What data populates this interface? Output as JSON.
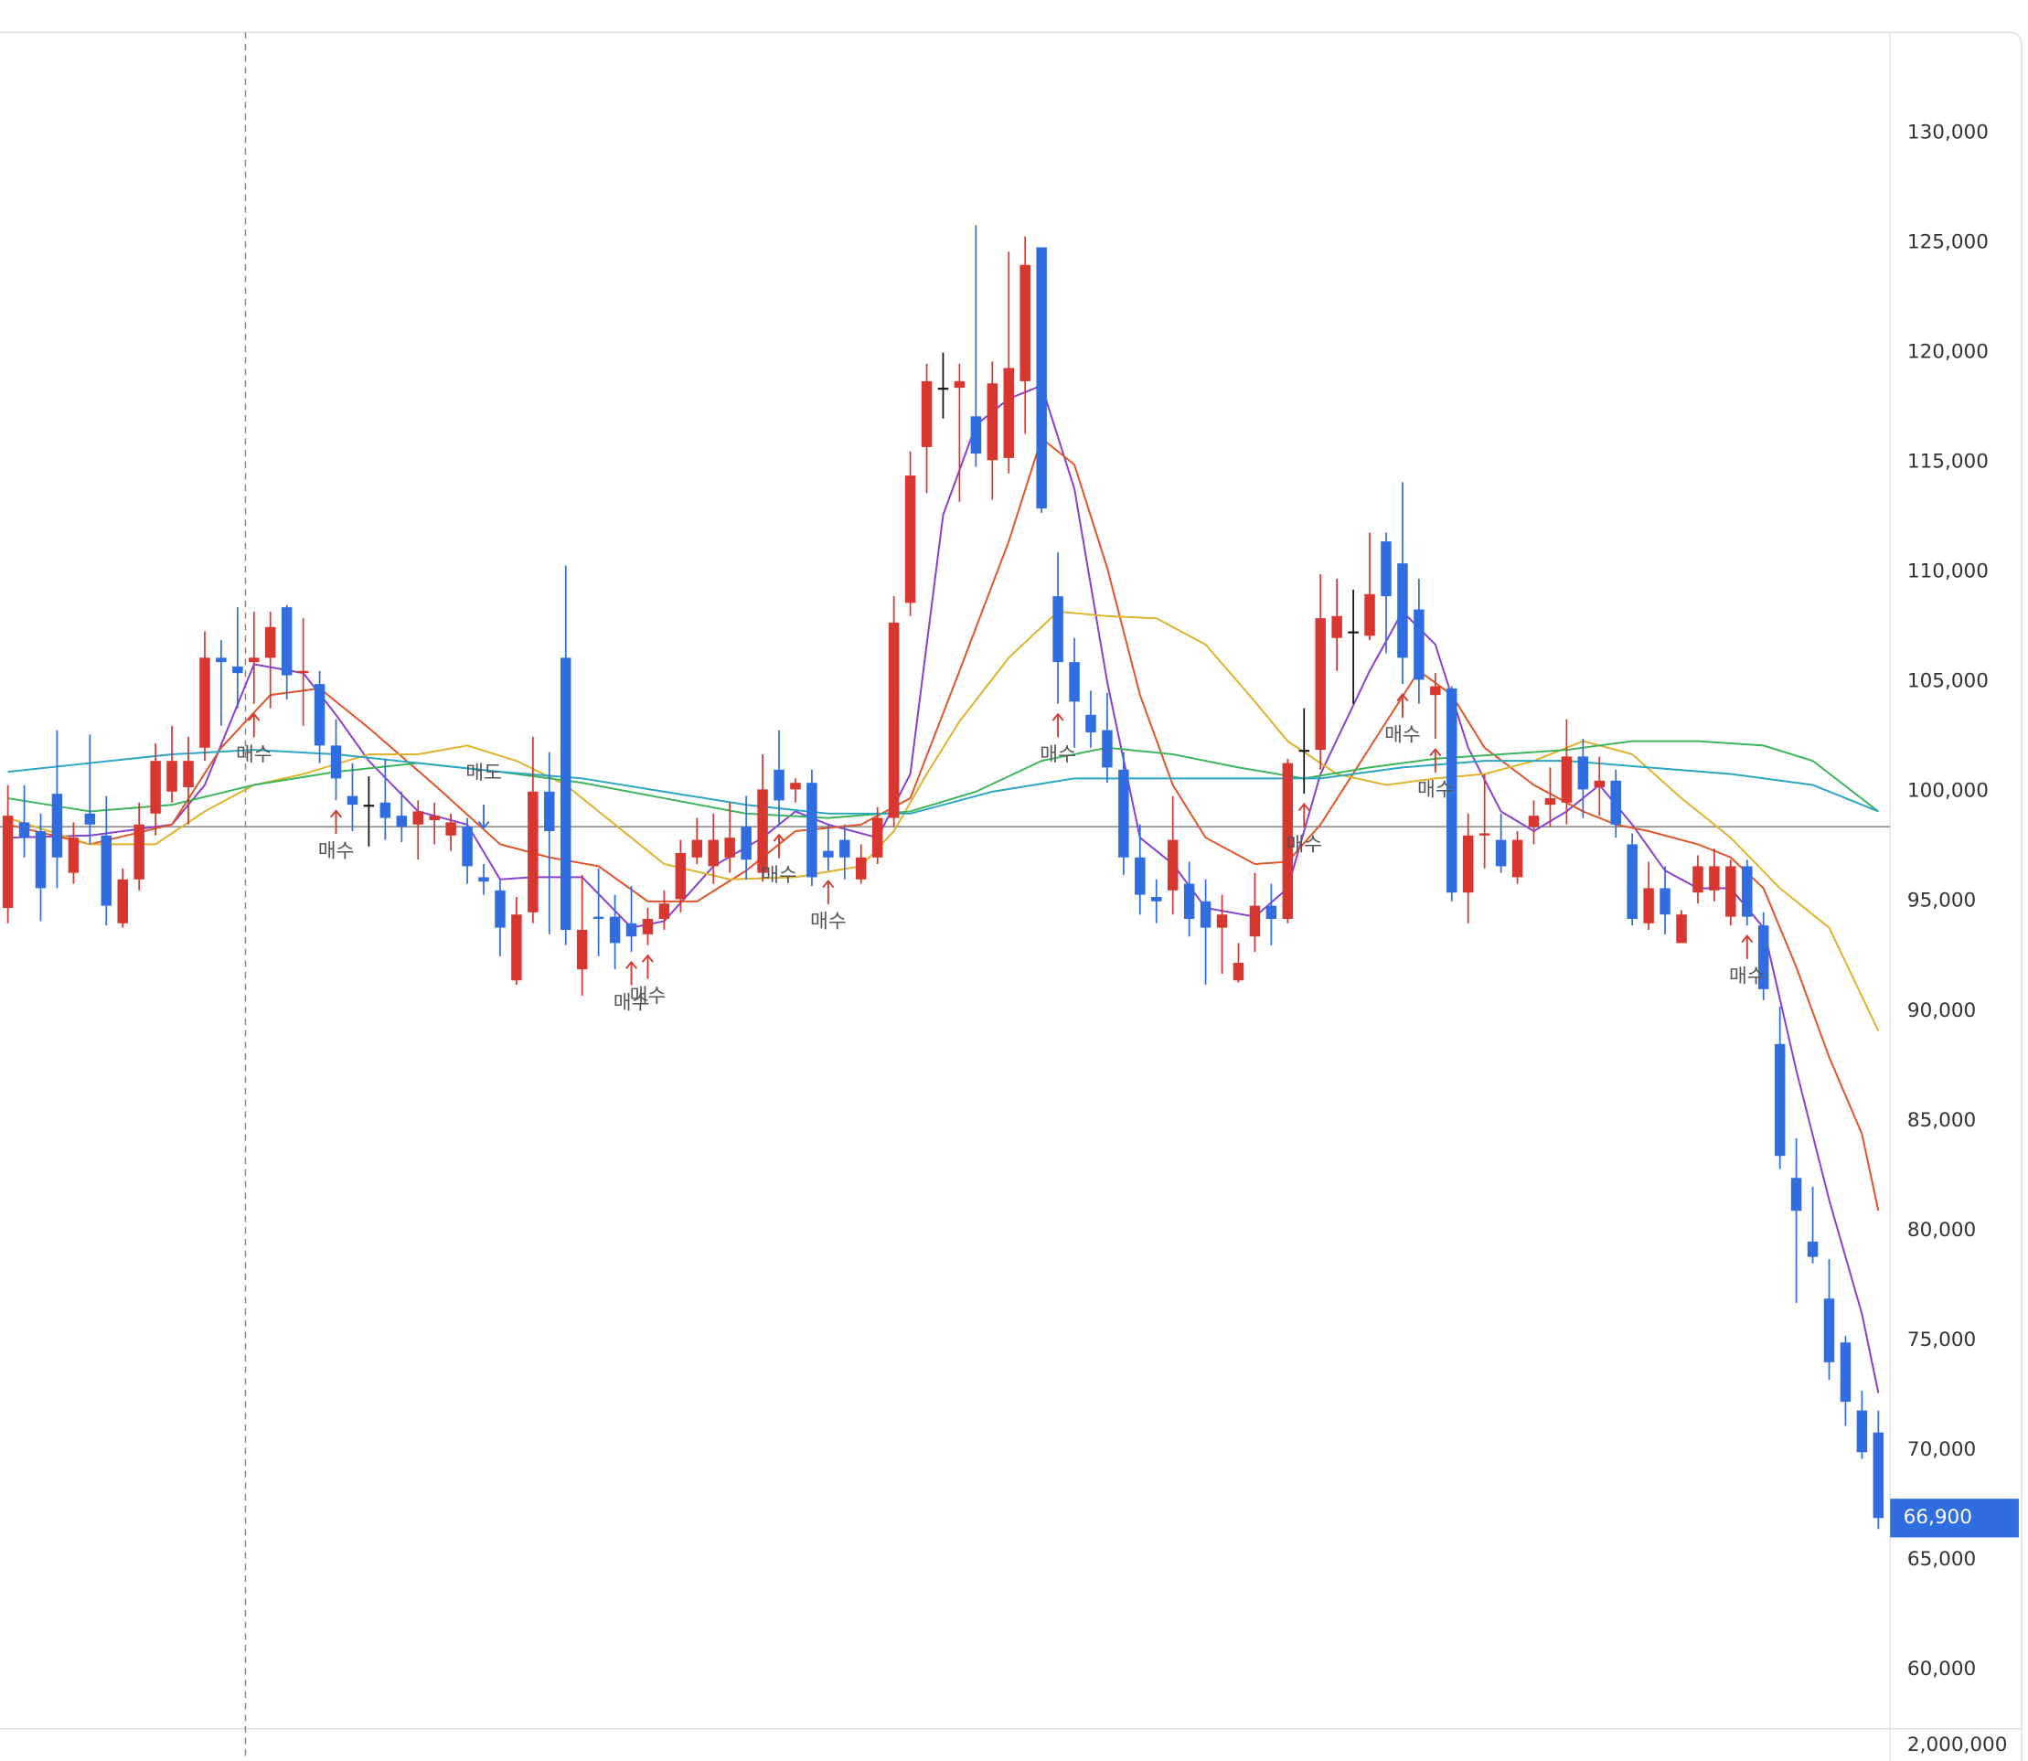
{
  "chart_data": {
    "type": "candlestick",
    "up_color": "#d7372f",
    "down_color": "#2f6de1",
    "flat_color": "#111111",
    "ylim": [
      57300,
      134600
    ],
    "yticks": [
      {
        "value": 60000,
        "label": "60,000"
      },
      {
        "value": 65000,
        "label": "65,000"
      },
      {
        "value": 70000,
        "label": "70,000"
      },
      {
        "value": 75000,
        "label": "75,000"
      },
      {
        "value": 80000,
        "label": "80,000"
      },
      {
        "value": 85000,
        "label": "85,000"
      },
      {
        "value": 90000,
        "label": "90,000"
      },
      {
        "value": 95000,
        "label": "95,000"
      },
      {
        "value": 100000,
        "label": "100,000"
      },
      {
        "value": 105000,
        "label": "105,000"
      },
      {
        "value": 110000,
        "label": "110,000"
      },
      {
        "value": 115000,
        "label": "115,000"
      },
      {
        "value": 120000,
        "label": "120,000"
      },
      {
        "value": 125000,
        "label": "125,000"
      },
      {
        "value": 130000,
        "label": "130,000"
      }
    ],
    "volume_yticks": [
      {
        "value": 2000000,
        "label": "2,000,000"
      }
    ],
    "open": [
      94700,
      98600,
      98200,
      99900,
      96300,
      99000,
      98000,
      94000,
      96000,
      99000,
      100000,
      100200,
      102000,
      106100,
      105700,
      105900,
      106100,
      108400,
      105400,
      104900,
      102100,
      99800,
      99400,
      99500,
      98900,
      98500,
      98700,
      98000,
      98400,
      96100,
      95500,
      91400,
      94500,
      100000,
      106100,
      91900,
      94300,
      94300,
      94000,
      93500,
      94200,
      95100,
      97000,
      96600,
      97000,
      98400,
      96300,
      101000,
      100100,
      100400,
      97300,
      97800,
      96000,
      97000,
      98800,
      108600,
      115700,
      118400,
      118400,
      117100,
      115100,
      115200,
      118700,
      124800,
      108900,
      105900,
      103500,
      102800,
      101000,
      97000,
      95200,
      95500,
      95800,
      95000,
      93800,
      91400,
      93400,
      94800,
      94200,
      101900,
      101900,
      107000,
      107300,
      107100,
      111400,
      110400,
      108300,
      104400,
      104700,
      95400,
      98000,
      97800,
      96100,
      98400,
      99400,
      99500,
      101600,
      100200,
      100500,
      97600,
      94000,
      95600,
      93100,
      95400,
      95500,
      94300,
      96600,
      93900,
      88500,
      82400,
      79500,
      76900,
      74900,
      71800,
      70800
    ],
    "high": [
      100300,
      100300,
      99000,
      102800,
      98600,
      102600,
      99800,
      96500,
      99500,
      102200,
      103000,
      102500,
      107300,
      106900,
      108400,
      108200,
      108200,
      108500,
      107900,
      105500,
      103300,
      101300,
      100700,
      101500,
      100000,
      99600,
      99500,
      99000,
      98800,
      96700,
      96000,
      95200,
      102500,
      101800,
      110300,
      96200,
      96500,
      95300,
      95700,
      94700,
      95500,
      97800,
      98800,
      99000,
      99500,
      99800,
      101700,
      102800,
      100600,
      101000,
      98500,
      98500,
      97600,
      99300,
      108900,
      115500,
      119500,
      120000,
      119500,
      125800,
      119600,
      124600,
      125300,
      124800,
      110900,
      107000,
      104600,
      104500,
      101800,
      98500,
      96000,
      99800,
      96800,
      96000,
      95300,
      93100,
      96300,
      95800,
      101500,
      103800,
      109900,
      109700,
      109200,
      111800,
      111800,
      114100,
      109700,
      105400,
      104800,
      99000,
      100800,
      99000,
      98200,
      99600,
      101100,
      103300,
      102400,
      101600,
      101000,
      98100,
      96800,
      96600,
      94600,
      97100,
      97400,
      96900,
      96900,
      94500,
      90200,
      84200,
      82000,
      78700,
      75200,
      72700,
      71800
    ],
    "low": [
      94000,
      97000,
      94100,
      95600,
      95800,
      97600,
      93900,
      93800,
      95500,
      98000,
      99500,
      98500,
      101400,
      103000,
      103800,
      104000,
      103800,
      104200,
      103000,
      101300,
      99600,
      98200,
      97500,
      97800,
      97700,
      96900,
      97600,
      97300,
      95800,
      95300,
      92500,
      91200,
      94000,
      93500,
      93000,
      90700,
      92500,
      91900,
      92700,
      93000,
      93700,
      94500,
      96700,
      95800,
      96300,
      96000,
      95900,
      98500,
      99500,
      95700,
      96400,
      96000,
      95800,
      96700,
      98400,
      108000,
      113600,
      117000,
      113200,
      114800,
      113300,
      114500,
      116300,
      112700,
      104000,
      102000,
      102000,
      100400,
      96200,
      94400,
      94000,
      94400,
      93400,
      91200,
      91700,
      91300,
      92700,
      93000,
      94000,
      99900,
      101000,
      105500,
      104000,
      106900,
      106300,
      104900,
      104000,
      102400,
      95000,
      94000,
      96500,
      96300,
      95800,
      97600,
      98400,
      98500,
      98800,
      98900,
      97900,
      93900,
      93700,
      93500,
      93100,
      94900,
      95000,
      93900,
      93900,
      90500,
      82800,
      76700,
      78500,
      73200,
      71100,
      69600,
      66400
    ],
    "close": [
      98900,
      97900,
      95600,
      97000,
      97900,
      98500,
      94800,
      96000,
      98500,
      101400,
      101400,
      101400,
      106100,
      105900,
      105400,
      106100,
      107500,
      105300,
      105500,
      102100,
      100600,
      99400,
      99400,
      98800,
      98400,
      99100,
      98900,
      98600,
      96600,
      95900,
      93800,
      94400,
      100000,
      98200,
      93700,
      93700,
      94200,
      93100,
      93400,
      94200,
      94900,
      97200,
      97800,
      97800,
      97900,
      96900,
      100100,
      99600,
      100400,
      96100,
      97000,
      97000,
      97000,
      98800,
      107700,
      114400,
      118700,
      118400,
      118700,
      115400,
      118600,
      119300,
      124000,
      112900,
      105900,
      104100,
      102700,
      101100,
      97000,
      95300,
      95000,
      97800,
      94200,
      93800,
      94400,
      92200,
      94800,
      94200,
      101300,
      101900,
      107900,
      108000,
      107300,
      109000,
      108900,
      106100,
      105100,
      104800,
      95400,
      98000,
      98100,
      96600,
      97800,
      98900,
      99700,
      101600,
      100100,
      100500,
      98500,
      94200,
      95600,
      94400,
      94400,
      96600,
      96600,
      96600,
      94300,
      91000,
      83400,
      80900,
      78800,
      74000,
      72200,
      69900,
      66900
    ],
    "lines": [
      {
        "color": "#8a3fd1",
        "x": [
          0,
          5,
          10,
          12,
          15,
          18,
          20,
          22,
          25,
          28,
          30,
          32,
          35,
          38,
          40,
          43,
          46,
          48,
          50,
          53,
          55,
          57,
          59,
          61,
          63,
          65,
          67,
          69,
          71,
          73,
          76,
          78,
          80,
          83,
          85,
          87,
          89,
          91,
          93,
          95,
          97,
          99,
          101,
          103,
          105,
          107,
          109,
          111,
          113,
          114
        ],
        "values": [
          97900,
          98000,
          98500,
          100300,
          105800,
          105400,
          103500,
          101400,
          99100,
          98500,
          96000,
          96100,
          96100,
          93800,
          94100,
          96600,
          97900,
          99100,
          98500,
          97900,
          100800,
          112600,
          116700,
          117900,
          118500,
          113800,
          105000,
          97900,
          96700,
          94700,
          94300,
          95600,
          100800,
          105500,
          108200,
          106700,
          102000,
          99100,
          98200,
          99100,
          100300,
          98500,
          96400,
          95600,
          95600,
          93800,
          87300,
          81400,
          76200,
          72600
        ]
      },
      {
        "color": "#e0552a",
        "x": [
          0,
          5,
          10,
          13,
          16,
          19,
          22,
          26,
          30,
          33,
          36,
          39,
          42,
          45,
          48,
          52,
          55,
          58,
          61,
          63,
          65,
          67,
          69,
          71,
          73,
          76,
          78,
          80,
          83,
          86,
          88,
          90,
          93,
          96,
          98,
          100,
          103,
          105,
          107,
          109,
          111,
          113,
          114
        ],
        "values": [
          98500,
          97600,
          98500,
          102000,
          104400,
          104700,
          102900,
          100300,
          97600,
          97000,
          96600,
          95000,
          95000,
          96400,
          98200,
          98500,
          99700,
          105500,
          111400,
          116100,
          114900,
          110200,
          104400,
          100300,
          97900,
          96700,
          96800,
          98500,
          102000,
          105500,
          104400,
          102000,
          100300,
          99100,
          98500,
          98200,
          97600,
          97000,
          95600,
          92000,
          87900,
          84400,
          80900
        ]
      },
      {
        "color": "#e0b12a",
        "x": [
          0,
          5,
          9,
          12,
          15,
          18,
          22,
          25,
          28,
          31,
          34,
          37,
          40,
          44,
          48,
          52,
          54,
          56,
          58,
          61,
          64,
          67,
          70,
          73,
          76,
          78,
          81,
          84,
          87,
          90,
          93,
          96,
          99,
          102,
          105,
          108,
          111,
          114
        ],
        "values": [
          98800,
          97600,
          97600,
          99100,
          100300,
          100800,
          101700,
          101700,
          102100,
          101400,
          100300,
          98500,
          96700,
          96000,
          96100,
          96600,
          98200,
          100800,
          103200,
          106100,
          108200,
          108000,
          107900,
          106700,
          104100,
          102300,
          100800,
          100300,
          100600,
          100800,
          101400,
          102300,
          101700,
          99700,
          97900,
          95600,
          93800,
          89100
        ]
      },
      {
        "color": "#3cb55a",
        "x": [
          0,
          5,
          10,
          15,
          20,
          25,
          30,
          35,
          40,
          45,
          50,
          55,
          59,
          63,
          67,
          71,
          75,
          79,
          83,
          87,
          91,
          95,
          99,
          103,
          107,
          110,
          114
        ],
        "values": [
          99700,
          99100,
          99400,
          100300,
          100900,
          101300,
          100900,
          100400,
          99700,
          99000,
          98800,
          99100,
          100000,
          101400,
          102000,
          101700,
          101100,
          100600,
          101100,
          101500,
          101700,
          101900,
          102300,
          102300,
          102100,
          101400,
          99100
        ]
      },
      {
        "color": "#2aa6c4",
        "x": [
          0,
          5,
          10,
          15,
          20,
          25,
          30,
          35,
          40,
          45,
          50,
          55,
          60,
          65,
          70,
          75,
          80,
          85,
          90,
          95,
          100,
          105,
          110,
          114
        ],
        "values": [
          100900,
          101300,
          101700,
          101900,
          101700,
          101300,
          100900,
          100600,
          100000,
          99400,
          99000,
          99000,
          100000,
          100600,
          100600,
          100600,
          100600,
          101100,
          101400,
          101400,
          101100,
          100800,
          100300,
          99100
        ]
      }
    ],
    "reference_line": {
      "value": 98400,
      "color": "#8c8c8c"
    },
    "buy_signals": {
      "label": "매수",
      "color": "#d7372f",
      "indices": [
        15,
        20,
        38,
        39,
        47,
        50,
        64,
        79,
        85,
        87,
        106
      ]
    },
    "sell_signals": {
      "label": "매도",
      "color": "#2f6de1",
      "indices": [
        29
      ]
    },
    "last_price": {
      "value": 66900,
      "label": "66,900",
      "color": "#2f6de1"
    }
  }
}
